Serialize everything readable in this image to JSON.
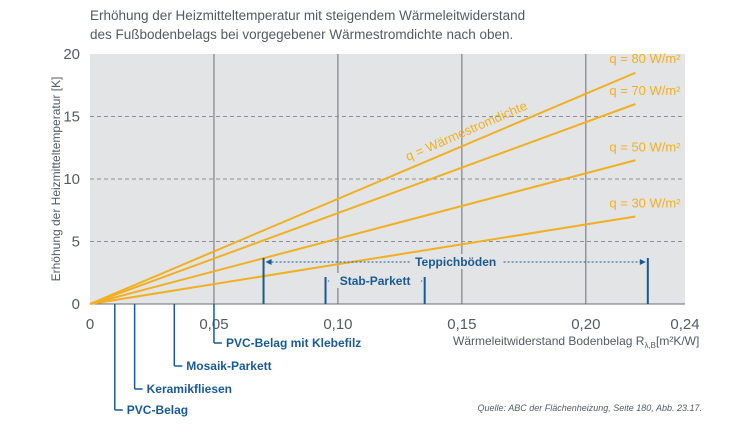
{
  "title": {
    "line1": "Erhöhung der Heizmitteltemperatur mit steigendem Wärmeleitwiderstand",
    "line2": "des Fußbodenbelags bei vorgegebener Wärmestromdichte nach oben."
  },
  "source": "Quelle: ABC der Flächenheizung, Seite 180, Abb. 23.17.",
  "colors": {
    "series": "#f0b022",
    "axis_text": "#555a60",
    "annotation": "#1a5a92",
    "plot_bg": "#e3e4e5",
    "grid": "#6b6e72"
  },
  "chart_data": {
    "type": "line",
    "title": "Erhöhung der Heizmitteltemperatur mit steigendem Wärmeleitwiderstand des Fußbodenbelags bei vorgegebener Wärmestromdichte nach oben.",
    "xlabel_main": "Wärmeleitwiderstand Bodenbelag R",
    "xlabel_sub": "λ,B",
    "xlabel_unit": "[m²K/W]",
    "ylabel": "Erhöhung der Heizmitteltemperatur [K]",
    "xlim": [
      0,
      0.24
    ],
    "ylim": [
      0,
      20
    ],
    "x_ticks": [
      {
        "value": 0,
        "label": "0"
      },
      {
        "value": 0.05,
        "label": "0,05"
      },
      {
        "value": 0.1,
        "label": "0,10"
      },
      {
        "value": 0.15,
        "label": "0,15"
      },
      {
        "value": 0.2,
        "label": "0,20"
      },
      {
        "value": 0.24,
        "label": "0,24"
      }
    ],
    "y_ticks": [
      {
        "value": 0,
        "label": "0"
      },
      {
        "value": 5,
        "label": "5"
      },
      {
        "value": 10,
        "label": "10"
      },
      {
        "value": 15,
        "label": "15"
      },
      {
        "value": 20,
        "label": "20"
      }
    ],
    "grid": "vertical lines at 0.05, 0.10, 0.15, 0.20; horizontal dashed lines at 5, 10, 15",
    "series": [
      {
        "name": "q = 80 W/m²",
        "x": [
          0,
          0.22
        ],
        "y": [
          0,
          18.5
        ]
      },
      {
        "name": "q = 70 W/m²",
        "x": [
          0,
          0.22
        ],
        "y": [
          0,
          16
        ]
      },
      {
        "name": "q = 50 W/m²",
        "x": [
          0,
          0.22
        ],
        "y": [
          0,
          11.5
        ]
      },
      {
        "name": "q = 30 W/m²",
        "x": [
          0,
          0.22
        ],
        "y": [
          0,
          7
        ]
      }
    ],
    "series_annotation": "q = Wärmestromdichte",
    "materials": [
      {
        "label": "PVC-Belag",
        "x": 0.01
      },
      {
        "label": "Keramikfliesen",
        "x": 0.018
      },
      {
        "label": "Mosaik-Parkett",
        "x": 0.034
      },
      {
        "label": "PVC-Belag mit Klebefilz",
        "x": 0.05
      }
    ],
    "ranges": [
      {
        "label": "Stab-Parkett",
        "from": 0.095,
        "to": 0.135
      },
      {
        "label": "Teppichböden",
        "from": 0.07,
        "to": 0.225
      }
    ]
  }
}
